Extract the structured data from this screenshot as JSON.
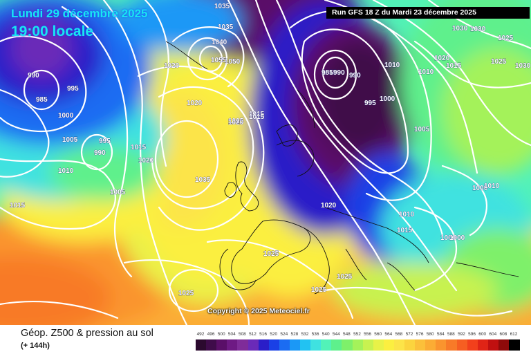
{
  "header": {
    "date_line": "Lundi 29 décembre 2025",
    "time_line": "19:00 locale",
    "run_info": "Run GFS 18 Z du Mardi 23 décembre 2025"
  },
  "copyright": "Copyright © 2025 Meteociel.fr",
  "footer": {
    "title": "Géop. Z500 & pression au sol",
    "subtitle": "(+ 144h)"
  },
  "legend": {
    "values": [
      "492",
      "496",
      "500",
      "504",
      "508",
      "512",
      "516",
      "520",
      "524",
      "528",
      "532",
      "536",
      "540",
      "544",
      "548",
      "552",
      "556",
      "560",
      "564",
      "568",
      "572",
      "576",
      "580",
      "584",
      "588",
      "592",
      "596",
      "600",
      "604",
      "608",
      "612"
    ],
    "colors": [
      "#2b0a2e",
      "#3f0c4a",
      "#5a0f68",
      "#6e1a84",
      "#7f2c99",
      "#6a2ab8",
      "#2a1ec8",
      "#1a40e6",
      "#1b6cf2",
      "#1b98f6",
      "#22c2f2",
      "#3fe2e0",
      "#52f2b8",
      "#5ef08c",
      "#7ef06a",
      "#a4f25a",
      "#c8f250",
      "#e8f248",
      "#fbef40",
      "#fce448",
      "#fbd43e",
      "#fbc03a",
      "#fbac34",
      "#fa942e",
      "#f87a28",
      "#f65e22",
      "#f2401c",
      "#e02416",
      "#c01010",
      "#8e0a0a",
      "#000000"
    ]
  },
  "isobars": [
    {
      "text": "1035"
    },
    {
      "text": "1030"
    },
    {
      "text": "1020"
    },
    {
      "text": "1025"
    },
    {
      "text": "990"
    },
    {
      "text": "985"
    },
    {
      "text": "995"
    },
    {
      "text": "1000"
    },
    {
      "text": "1005"
    },
    {
      "text": "995"
    },
    {
      "text": "990"
    },
    {
      "text": "1010"
    },
    {
      "text": "1015"
    },
    {
      "text": "1015"
    },
    {
      "text": "1020"
    },
    {
      "text": "1005"
    },
    {
      "text": "1035"
    },
    {
      "text": "1035"
    },
    {
      "text": "1040"
    },
    {
      "text": "1055"
    },
    {
      "text": "1050"
    },
    {
      "text": "1020"
    },
    {
      "text": "1030"
    },
    {
      "text": "1025"
    },
    {
      "text": "1015"
    },
    {
      "text": "1015"
    },
    {
      "text": "985"
    },
    {
      "text": "990"
    },
    {
      "text": "990"
    },
    {
      "text": "995"
    },
    {
      "text": "1000"
    },
    {
      "text": "1010"
    },
    {
      "text": "1010"
    },
    {
      "text": "1005"
    },
    {
      "text": "1030"
    },
    {
      "text": "1025"
    },
    {
      "text": "1020"
    },
    {
      "text": "1015"
    },
    {
      "text": "1025"
    },
    {
      "text": "1025"
    },
    {
      "text": "1010"
    },
    {
      "text": "1000"
    },
    {
      "text": "1000"
    },
    {
      "text": "1020"
    },
    {
      "text": "1010"
    },
    {
      "text": "1015"
    },
    {
      "text": "1000"
    },
    {
      "text": "1025"
    },
    {
      "text": "1025"
    },
    {
      "text": "1025"
    },
    {
      "text": "1015"
    },
    {
      "text": "1020"
    }
  ]
}
